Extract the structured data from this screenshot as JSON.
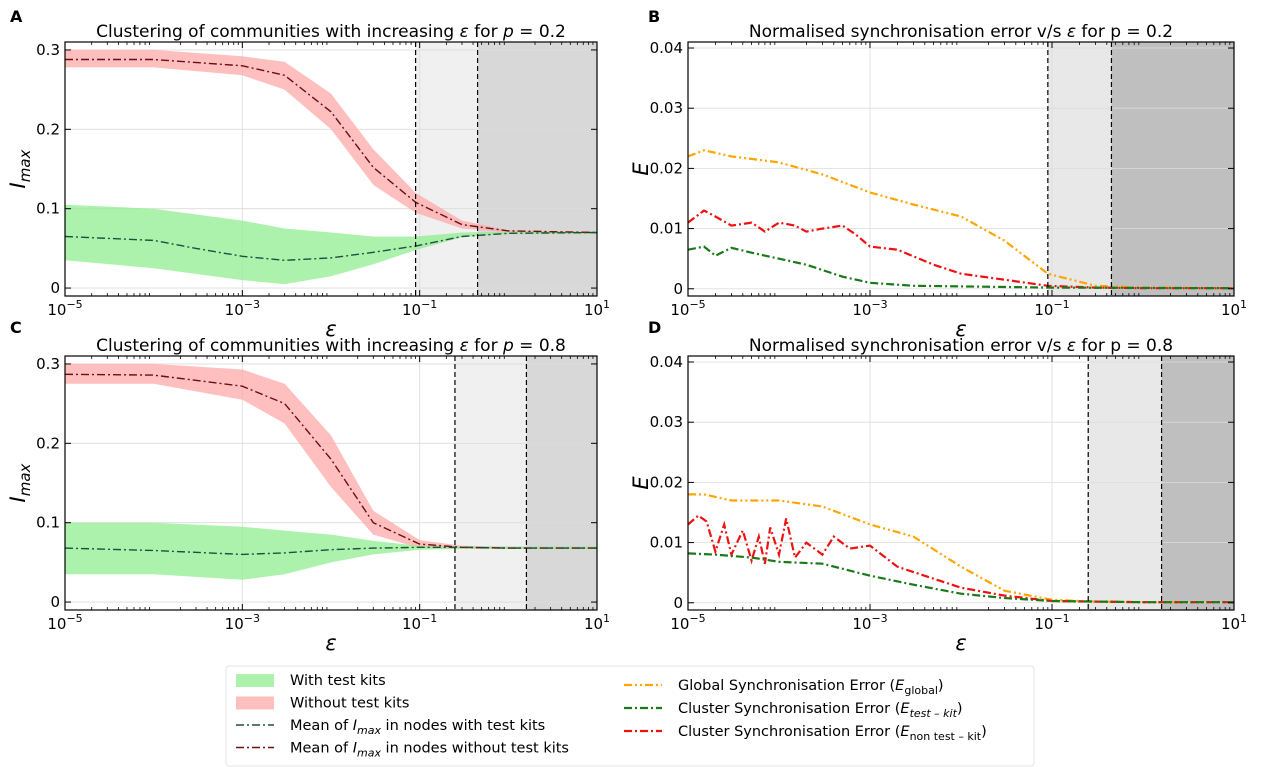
{
  "legend": {
    "left": [
      {
        "kind": "band",
        "color": "#90ee90",
        "label": "With test kits"
      },
      {
        "kind": "band",
        "color": "#ffaaaa",
        "label": "Without test kits"
      },
      {
        "kind": "line",
        "color": "#1f4f3f",
        "label_pre": "Mean of ",
        "label_math": "I",
        "label_sub": "max",
        "label_post": " in nodes with test kits"
      },
      {
        "kind": "line",
        "color": "#6b1010",
        "label_pre": "Mean of ",
        "label_math": "I",
        "label_sub": "max",
        "label_post": " in nodes without test kits"
      }
    ],
    "right": [
      {
        "kind": "line",
        "color": "#ffa500",
        "label_pre": "Global Synchronisation Error (",
        "label_math": "E",
        "label_sub": "global",
        "label_post": ")"
      },
      {
        "kind": "line",
        "color": "#1a7a1a",
        "label_pre": "Cluster Synchronisation Error (",
        "label_math": "E",
        "label_sub": "test – kit",
        "label_post": ")"
      },
      {
        "kind": "line",
        "color": "#ee1111",
        "label_pre": "Cluster Synchronisation Error (",
        "label_math": "E",
        "label_sub": "non test – kit",
        "label_post": ")"
      }
    ]
  },
  "chart_data": [
    {
      "panel": "A",
      "type": "line",
      "title_pre": "Clustering of communities with increasing ",
      "title_math": "ε",
      "title_post": " for ",
      "title_math2": "p",
      "title_end": " = 0.2",
      "xlabel": "ε",
      "ylabel_main": "I",
      "ylabel_sub": "max",
      "xscale": "log",
      "xlim": [
        1e-05,
        10
      ],
      "ylim": [
        -0.01,
        0.31
      ],
      "xticks": [
        {
          "v": 1e-05,
          "base": "10",
          "exp": "−5"
        },
        {
          "v": 0.001,
          "base": "10",
          "exp": "−3"
        },
        {
          "v": 0.1,
          "base": "10",
          "exp": "−1"
        },
        {
          "v": 10,
          "base": "10",
          "exp": "1"
        }
      ],
      "yticks": [
        {
          "v": 0,
          "label": "0"
        },
        {
          "v": 0.1,
          "label": "0.1"
        },
        {
          "v": 0.2,
          "label": "0.2"
        },
        {
          "v": 0.3,
          "label": "0.3"
        }
      ],
      "grid": true,
      "shaded": [
        {
          "from": 0.09,
          "to": 0.45,
          "color": "#f0f0f0"
        },
        {
          "from": 0.45,
          "to": 10,
          "color": "#d8d8d8"
        }
      ],
      "vlines": [
        0.09,
        0.45
      ],
      "bands": [
        {
          "color": "#ffaaaa",
          "x": [
            1e-05,
            0.0001,
            0.001,
            0.003,
            0.01,
            0.03,
            0.09,
            0.3,
            1,
            10
          ],
          "lower": [
            0.278,
            0.278,
            0.268,
            0.25,
            0.2,
            0.13,
            0.095,
            0.075,
            0.07,
            0.068
          ],
          "upper": [
            0.3,
            0.3,
            0.292,
            0.285,
            0.245,
            0.175,
            0.12,
            0.085,
            0.073,
            0.071
          ]
        },
        {
          "color": "#90ee90",
          "x": [
            1e-05,
            0.0001,
            0.001,
            0.003,
            0.01,
            0.03,
            0.09,
            0.3,
            1,
            10
          ],
          "lower": [
            0.035,
            0.025,
            0.01,
            0.005,
            0.015,
            0.03,
            0.048,
            0.064,
            0.068,
            0.068
          ],
          "upper": [
            0.105,
            0.1,
            0.085,
            0.075,
            0.07,
            0.065,
            0.065,
            0.07,
            0.071,
            0.071
          ]
        }
      ],
      "series": [
        {
          "color": "#6b1010",
          "style": "dashdot",
          "width": 1.4,
          "x": [
            1e-05,
            0.0001,
            0.001,
            0.003,
            0.01,
            0.03,
            0.09,
            0.3,
            1,
            10
          ],
          "y": [
            0.288,
            0.288,
            0.28,
            0.268,
            0.222,
            0.152,
            0.108,
            0.08,
            0.072,
            0.07
          ]
        },
        {
          "color": "#1f4f3f",
          "style": "dashdot",
          "width": 1.4,
          "x": [
            1e-05,
            0.0001,
            0.0003,
            0.001,
            0.003,
            0.01,
            0.03,
            0.09,
            0.3,
            1,
            10
          ],
          "y": [
            0.065,
            0.06,
            0.05,
            0.04,
            0.035,
            0.038,
            0.045,
            0.053,
            0.065,
            0.069,
            0.07
          ]
        }
      ]
    },
    {
      "panel": "B",
      "type": "line",
      "title_pre": "Normalised synchronisation error v/s ",
      "title_math": "ε",
      "title_post": " for p = 0.2",
      "title_math2": "",
      "title_end": "",
      "xlabel": "ε",
      "ylabel_main": "E",
      "ylabel_sub": "",
      "xscale": "log",
      "xlim": [
        1e-05,
        10
      ],
      "ylim": [
        -0.0012,
        0.041
      ],
      "xticks": [
        {
          "v": 1e-05,
          "base": "10",
          "exp": "−5"
        },
        {
          "v": 0.001,
          "base": "10",
          "exp": "−3"
        },
        {
          "v": 0.1,
          "base": "10",
          "exp": "−1"
        },
        {
          "v": 10,
          "base": "10",
          "exp": "1"
        }
      ],
      "yticks": [
        {
          "v": 0,
          "label": "0"
        },
        {
          "v": 0.01,
          "label": "0.01"
        },
        {
          "v": 0.02,
          "label": "0.02"
        },
        {
          "v": 0.03,
          "label": "0.03"
        },
        {
          "v": 0.04,
          "label": "0.04"
        }
      ],
      "grid": true,
      "shaded": [
        {
          "from": 0.09,
          "to": 0.45,
          "color": "#e8e8e8"
        },
        {
          "from": 0.45,
          "to": 10,
          "color": "#bfbfbf"
        }
      ],
      "vlines": [
        0.09,
        0.45
      ],
      "bands": [],
      "series": [
        {
          "color": "#ffa500",
          "style": "dashdotdot",
          "width": 2.2,
          "x": [
            1e-05,
            1.5e-05,
            3e-05,
            0.0001,
            0.0003,
            0.001,
            0.003,
            0.01,
            0.03,
            0.09,
            0.3,
            1,
            10
          ],
          "y": [
            0.022,
            0.023,
            0.022,
            0.021,
            0.019,
            0.016,
            0.014,
            0.012,
            0.008,
            0.0025,
            0.0005,
            0.0002,
            0.0001
          ]
        },
        {
          "color": "#ee1111",
          "style": "dashdot",
          "width": 2.2,
          "x": [
            1e-05,
            1.5e-05,
            2e-05,
            3e-05,
            5e-05,
            7e-05,
            0.0001,
            0.00015,
            0.0002,
            0.0003,
            0.0005,
            0.0007,
            0.001,
            0.002,
            0.005,
            0.01,
            0.03,
            0.09,
            0.3,
            1,
            10
          ],
          "y": [
            0.011,
            0.013,
            0.012,
            0.0105,
            0.011,
            0.0095,
            0.011,
            0.0105,
            0.0095,
            0.01,
            0.0105,
            0.009,
            0.007,
            0.0065,
            0.004,
            0.0025,
            0.0015,
            0.0005,
            0.0002,
            0.0001,
            0.0001
          ]
        },
        {
          "color": "#1a7a1a",
          "style": "dashdot",
          "width": 2.2,
          "x": [
            1e-05,
            1.5e-05,
            2e-05,
            3e-05,
            5e-05,
            0.0001,
            0.0002,
            0.0005,
            0.001,
            0.003,
            0.01,
            0.1,
            10
          ],
          "y": [
            0.0065,
            0.007,
            0.0055,
            0.0068,
            0.006,
            0.005,
            0.004,
            0.002,
            0.001,
            0.0005,
            0.0004,
            0.0002,
            0.0001
          ]
        }
      ]
    },
    {
      "panel": "C",
      "type": "line",
      "title_pre": "Clustering of communities with increasing ",
      "title_math": "ε",
      "title_post": " for ",
      "title_math2": "p",
      "title_end": " = 0.8",
      "xlabel": "ε",
      "ylabel_main": "I",
      "ylabel_sub": "max",
      "xscale": "log",
      "xlim": [
        1e-05,
        10
      ],
      "ylim": [
        -0.01,
        0.31
      ],
      "xticks": [
        {
          "v": 1e-05,
          "base": "10",
          "exp": "−5"
        },
        {
          "v": 0.001,
          "base": "10",
          "exp": "−3"
        },
        {
          "v": 0.1,
          "base": "10",
          "exp": "−1"
        },
        {
          "v": 10,
          "base": "10",
          "exp": "1"
        }
      ],
      "yticks": [
        {
          "v": 0,
          "label": "0"
        },
        {
          "v": 0.1,
          "label": "0.1"
        },
        {
          "v": 0.2,
          "label": "0.2"
        },
        {
          "v": 0.3,
          "label": "0.3"
        }
      ],
      "grid": true,
      "shaded": [
        {
          "from": 0.25,
          "to": 1.6,
          "color": "#f0f0f0"
        },
        {
          "from": 1.6,
          "to": 10,
          "color": "#d8d8d8"
        }
      ],
      "vlines": [
        0.25,
        1.6
      ],
      "bands": [
        {
          "color": "#ffaaaa",
          "x": [
            1e-05,
            0.0001,
            0.001,
            0.003,
            0.01,
            0.03,
            0.1,
            0.3,
            1,
            10
          ],
          "lower": [
            0.275,
            0.275,
            0.255,
            0.225,
            0.145,
            0.085,
            0.068,
            0.067,
            0.067,
            0.067
          ],
          "upper": [
            0.3,
            0.3,
            0.293,
            0.275,
            0.21,
            0.115,
            0.078,
            0.071,
            0.07,
            0.07
          ]
        },
        {
          "color": "#90ee90",
          "x": [
            1e-05,
            0.0001,
            0.001,
            0.003,
            0.01,
            0.03,
            0.1,
            0.3,
            1,
            10
          ],
          "lower": [
            0.035,
            0.035,
            0.028,
            0.035,
            0.05,
            0.06,
            0.066,
            0.067,
            0.067,
            0.067
          ],
          "upper": [
            0.1,
            0.1,
            0.095,
            0.09,
            0.085,
            0.077,
            0.071,
            0.07,
            0.07,
            0.07
          ]
        }
      ],
      "series": [
        {
          "color": "#6b1010",
          "style": "dashdot",
          "width": 1.4,
          "x": [
            1e-05,
            0.0001,
            0.001,
            0.003,
            0.01,
            0.03,
            0.1,
            0.3,
            1,
            10
          ],
          "y": [
            0.287,
            0.286,
            0.272,
            0.25,
            0.18,
            0.1,
            0.073,
            0.069,
            0.068,
            0.068
          ]
        },
        {
          "color": "#1f4f3f",
          "style": "dashdot",
          "width": 1.4,
          "x": [
            1e-05,
            0.0001,
            0.001,
            0.003,
            0.01,
            0.03,
            0.1,
            0.3,
            1,
            10
          ],
          "y": [
            0.068,
            0.065,
            0.06,
            0.062,
            0.066,
            0.068,
            0.069,
            0.069,
            0.068,
            0.068
          ]
        }
      ]
    },
    {
      "panel": "D",
      "type": "line",
      "title_pre": "Normalised synchronisation error v/s ",
      "title_math": "ε",
      "title_post": " for p = 0.8",
      "title_math2": "",
      "title_end": "",
      "xlabel": "ε",
      "ylabel_main": "E",
      "ylabel_sub": "",
      "xscale": "log",
      "xlim": [
        1e-05,
        10
      ],
      "ylim": [
        -0.0012,
        0.041
      ],
      "xticks": [
        {
          "v": 1e-05,
          "base": "10",
          "exp": "−5"
        },
        {
          "v": 0.001,
          "base": "10",
          "exp": "−3"
        },
        {
          "v": 0.1,
          "base": "10",
          "exp": "−1"
        },
        {
          "v": 10,
          "base": "10",
          "exp": "1"
        }
      ],
      "yticks": [
        {
          "v": 0,
          "label": "0"
        },
        {
          "v": 0.01,
          "label": "0.01"
        },
        {
          "v": 0.02,
          "label": "0.02"
        },
        {
          "v": 0.03,
          "label": "0.03"
        },
        {
          "v": 0.04,
          "label": "0.04"
        }
      ],
      "grid": true,
      "shaded": [
        {
          "from": 0.25,
          "to": 1.6,
          "color": "#e8e8e8"
        },
        {
          "from": 1.6,
          "to": 10,
          "color": "#bfbfbf"
        }
      ],
      "vlines": [
        0.25,
        1.6
      ],
      "bands": [],
      "series": [
        {
          "color": "#ffa500",
          "style": "dashdotdot",
          "width": 2.2,
          "x": [
            1e-05,
            1.5e-05,
            3e-05,
            0.0001,
            0.0003,
            0.001,
            0.003,
            0.01,
            0.03,
            0.1,
            0.3,
            1,
            10
          ],
          "y": [
            0.018,
            0.018,
            0.017,
            0.017,
            0.016,
            0.013,
            0.011,
            0.006,
            0.002,
            0.0005,
            0.0002,
            0.0001,
            0.0001
          ]
        },
        {
          "color": "#ee1111",
          "style": "dashdot",
          "width": 2.2,
          "x": [
            1e-05,
            1.3e-05,
            1.6e-05,
            2e-05,
            2.5e-05,
            3e-05,
            4e-05,
            5e-05,
            6e-05,
            7e-05,
            8e-05,
            0.0001,
            0.00012,
            0.00015,
            0.0002,
            0.0003,
            0.0004,
            0.0006,
            0.001,
            0.002,
            0.005,
            0.01,
            0.03,
            0.1,
            1,
            10
          ],
          "y": [
            0.013,
            0.0145,
            0.0135,
            0.0085,
            0.013,
            0.008,
            0.012,
            0.007,
            0.011,
            0.0065,
            0.0125,
            0.008,
            0.014,
            0.0075,
            0.01,
            0.008,
            0.011,
            0.009,
            0.0095,
            0.006,
            0.004,
            0.0025,
            0.0012,
            0.0003,
            0.0001,
            0.0001
          ]
        },
        {
          "color": "#1a7a1a",
          "style": "dashdot",
          "width": 2.2,
          "x": [
            1e-05,
            2e-05,
            5e-05,
            0.0001,
            0.0003,
            0.001,
            0.003,
            0.01,
            0.03,
            0.1,
            1,
            10
          ],
          "y": [
            0.0082,
            0.008,
            0.0075,
            0.0068,
            0.0065,
            0.0045,
            0.003,
            0.0015,
            0.0008,
            0.0003,
            0.0001,
            0.0001
          ]
        }
      ]
    }
  ]
}
